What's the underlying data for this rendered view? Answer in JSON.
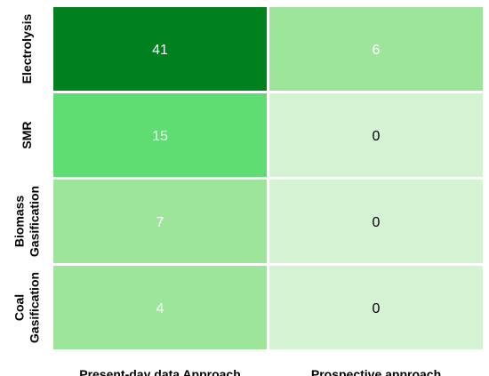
{
  "chart_data": {
    "type": "heatmap",
    "title": "",
    "xlabel": "",
    "ylabel": "",
    "rows": [
      {
        "lines": [
          "Electrolysis"
        ]
      },
      {
        "lines": [
          "SMR"
        ]
      },
      {
        "lines": [
          "Biomass",
          "Gasification"
        ]
      },
      {
        "lines": [
          "Coal",
          "Gasification"
        ]
      }
    ],
    "columns": [
      "Present-day data Approach",
      "Prospective approach"
    ],
    "values": [
      [
        41,
        6
      ],
      [
        15,
        0
      ],
      [
        7,
        0
      ],
      [
        4,
        0
      ]
    ],
    "colors": {
      "41": "#00811d",
      "15": "#5fdc72",
      "7": "#9ee59c",
      "6": "#9ee59c",
      "4": "#9ee59c",
      "0": "#d3f3d3"
    },
    "text_colors": {
      "light": "#ffffff",
      "dark": "#000000"
    },
    "border_color": "#ffffff"
  }
}
